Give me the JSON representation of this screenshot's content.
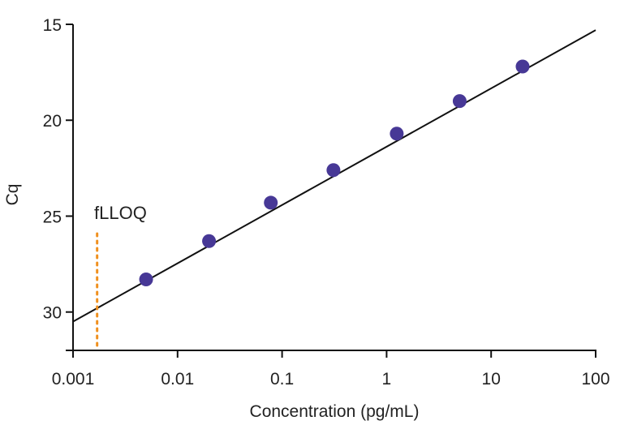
{
  "chart_data": {
    "type": "scatter",
    "title": "",
    "xlabel": "Concentration (pg/mL)",
    "ylabel": "Cq",
    "xscale": "log",
    "xlim": [
      0.001,
      100
    ],
    "ylim": [
      32,
      15
    ],
    "y_inverted": true,
    "grid": false,
    "x_ticks": [
      0.001,
      0.01,
      0.1,
      1,
      10,
      100
    ],
    "x_tick_labels": [
      "0.001",
      "0.01",
      "0.1",
      "1",
      "10",
      "100"
    ],
    "y_ticks": [
      15,
      20,
      25,
      30
    ],
    "y_tick_labels": [
      "15",
      "20",
      "25",
      "30"
    ],
    "points": [
      {
        "x": 0.005,
        "y": 28.3
      },
      {
        "x": 0.02,
        "y": 26.3
      },
      {
        "x": 0.078,
        "y": 24.3
      },
      {
        "x": 0.31,
        "y": 22.6
      },
      {
        "x": 1.25,
        "y": 20.7
      },
      {
        "x": 5,
        "y": 19.0
      },
      {
        "x": 20,
        "y": 17.2
      }
    ],
    "fit_line": {
      "x": [
        0.001,
        100
      ],
      "y": [
        30.5,
        15.3
      ]
    },
    "lloq": {
      "x": 0.0017,
      "label": "fLLOQ",
      "y_from": 32,
      "y_to": 25.8
    },
    "colors": {
      "points": "#473896",
      "fit_line": "#111111",
      "lloq": "#F0901E",
      "axis": "#111111"
    }
  }
}
